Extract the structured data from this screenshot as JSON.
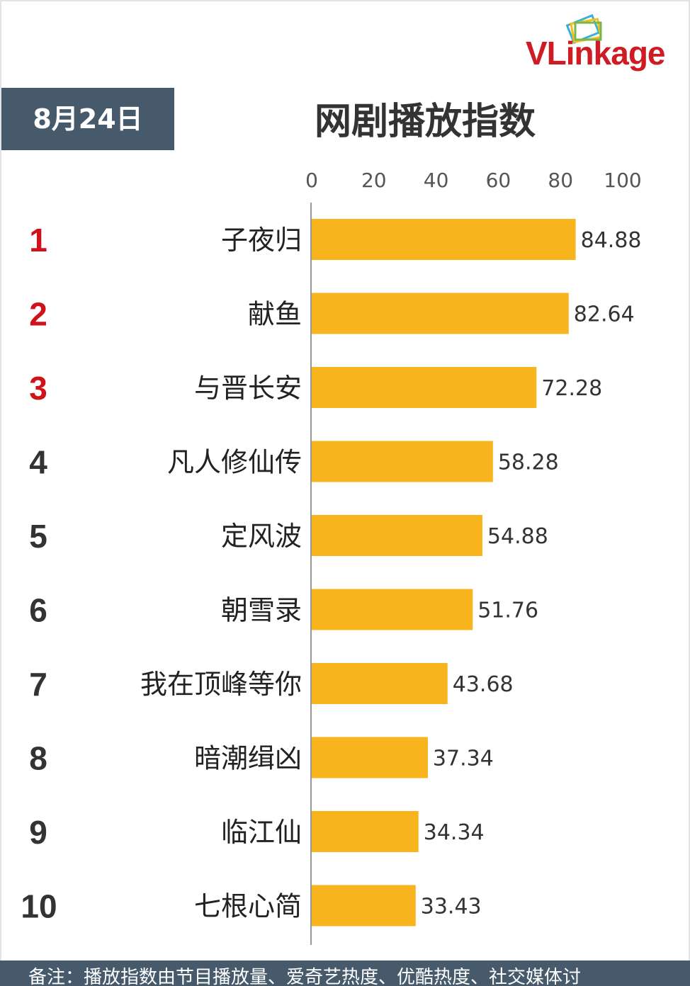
{
  "header": {
    "date": "8月24日",
    "logo_text": "VLinkage"
  },
  "footer": {
    "note": "备注：播放指数由节目播放量、爱奇艺热度、优酷热度、社交媒体讨"
  },
  "colors": {
    "bar": "#f8b41c",
    "rank_top": "#d0121b",
    "rank_default": "#333333",
    "badge": "#465a6b"
  },
  "chart_data": {
    "type": "bar",
    "orientation": "horizontal",
    "title": "网剧播放指数",
    "xlabel": "",
    "ylabel": "",
    "xlim": [
      0,
      100
    ],
    "ticks": [
      0,
      20,
      40,
      60,
      80,
      100
    ],
    "grid": false,
    "categories": [
      "子夜归",
      "献鱼",
      "与晋长安",
      "凡人修仙传",
      "定风波",
      "朝雪录",
      "我在顶峰等你",
      "暗潮缉凶",
      "临江仙",
      "七根心简"
    ],
    "ranks": [
      "1",
      "2",
      "3",
      "4",
      "5",
      "6",
      "7",
      "8",
      "9",
      "10"
    ],
    "values": [
      84.88,
      82.64,
      72.28,
      58.28,
      54.88,
      51.76,
      43.68,
      37.34,
      34.34,
      33.43
    ],
    "value_labels": [
      "84.88",
      "82.64",
      "72.28",
      "58.28",
      "54.88",
      "51.76",
      "43.68",
      "37.34",
      "34.34",
      "33.43"
    ]
  }
}
